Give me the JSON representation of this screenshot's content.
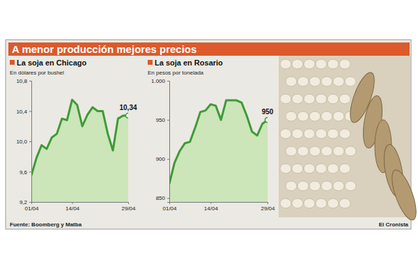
{
  "title": "A menor producción mejores precios",
  "source": "Fuente: Boomberg y Matba",
  "credit": "El Cronista",
  "chart_data": [
    {
      "type": "area",
      "title": "La soja en Chicago",
      "subtitle": "En dólares por bushel",
      "categories": [
        "01/04",
        null,
        null,
        null,
        null,
        null,
        null,
        null,
        "14/04",
        null,
        null,
        null,
        null,
        null,
        null,
        null,
        null,
        null,
        null,
        "29/04"
      ],
      "values": [
        9.55,
        9.78,
        9.95,
        9.9,
        10.05,
        10.1,
        10.3,
        10.28,
        10.55,
        10.48,
        10.2,
        10.35,
        10.45,
        10.4,
        10.4,
        10.1,
        9.88,
        10.3,
        10.34,
        10.34
      ],
      "value_labels": [
        null,
        null,
        null,
        null,
        null,
        null,
        null,
        null,
        null,
        null,
        null,
        null,
        null,
        null,
        null,
        null,
        null,
        null,
        null,
        "10,34"
      ],
      "data_labels": true,
      "color": "#3d9b35",
      "ylim": [
        9.2,
        10.8
      ],
      "yticks": [
        {
          "value": 9.2,
          "label": "9,2"
        },
        {
          "value": 9.6,
          "label": "9,6"
        },
        {
          "value": 10.0,
          "label": "10,0"
        },
        {
          "value": 10.4,
          "label": "10,4"
        },
        {
          "value": 10.8,
          "label": "10,8"
        }
      ],
      "grid": false
    },
    {
      "type": "area",
      "title": "La soja en Rosario",
      "subtitle": "En pesos por tonelada",
      "categories": [
        "01/04",
        null,
        null,
        null,
        null,
        null,
        null,
        null,
        "14/04",
        null,
        null,
        null,
        null,
        null,
        null,
        null,
        null,
        null,
        null,
        "29/04"
      ],
      "values": [
        868,
        895,
        910,
        920,
        922,
        940,
        960,
        962,
        970,
        968,
        950,
        975,
        975,
        975,
        972,
        955,
        935,
        930,
        945,
        950
      ],
      "value_labels": [
        null,
        null,
        null,
        null,
        null,
        null,
        null,
        null,
        null,
        null,
        null,
        null,
        null,
        null,
        null,
        null,
        null,
        null,
        null,
        "950"
      ],
      "data_labels": true,
      "color": "#3d9b35",
      "ylim": [
        845,
        1000
      ],
      "yticks": [
        850,
        900,
        950,
        {
          "value": 1000,
          "label": "1.000"
        }
      ],
      "grid": false
    }
  ]
}
